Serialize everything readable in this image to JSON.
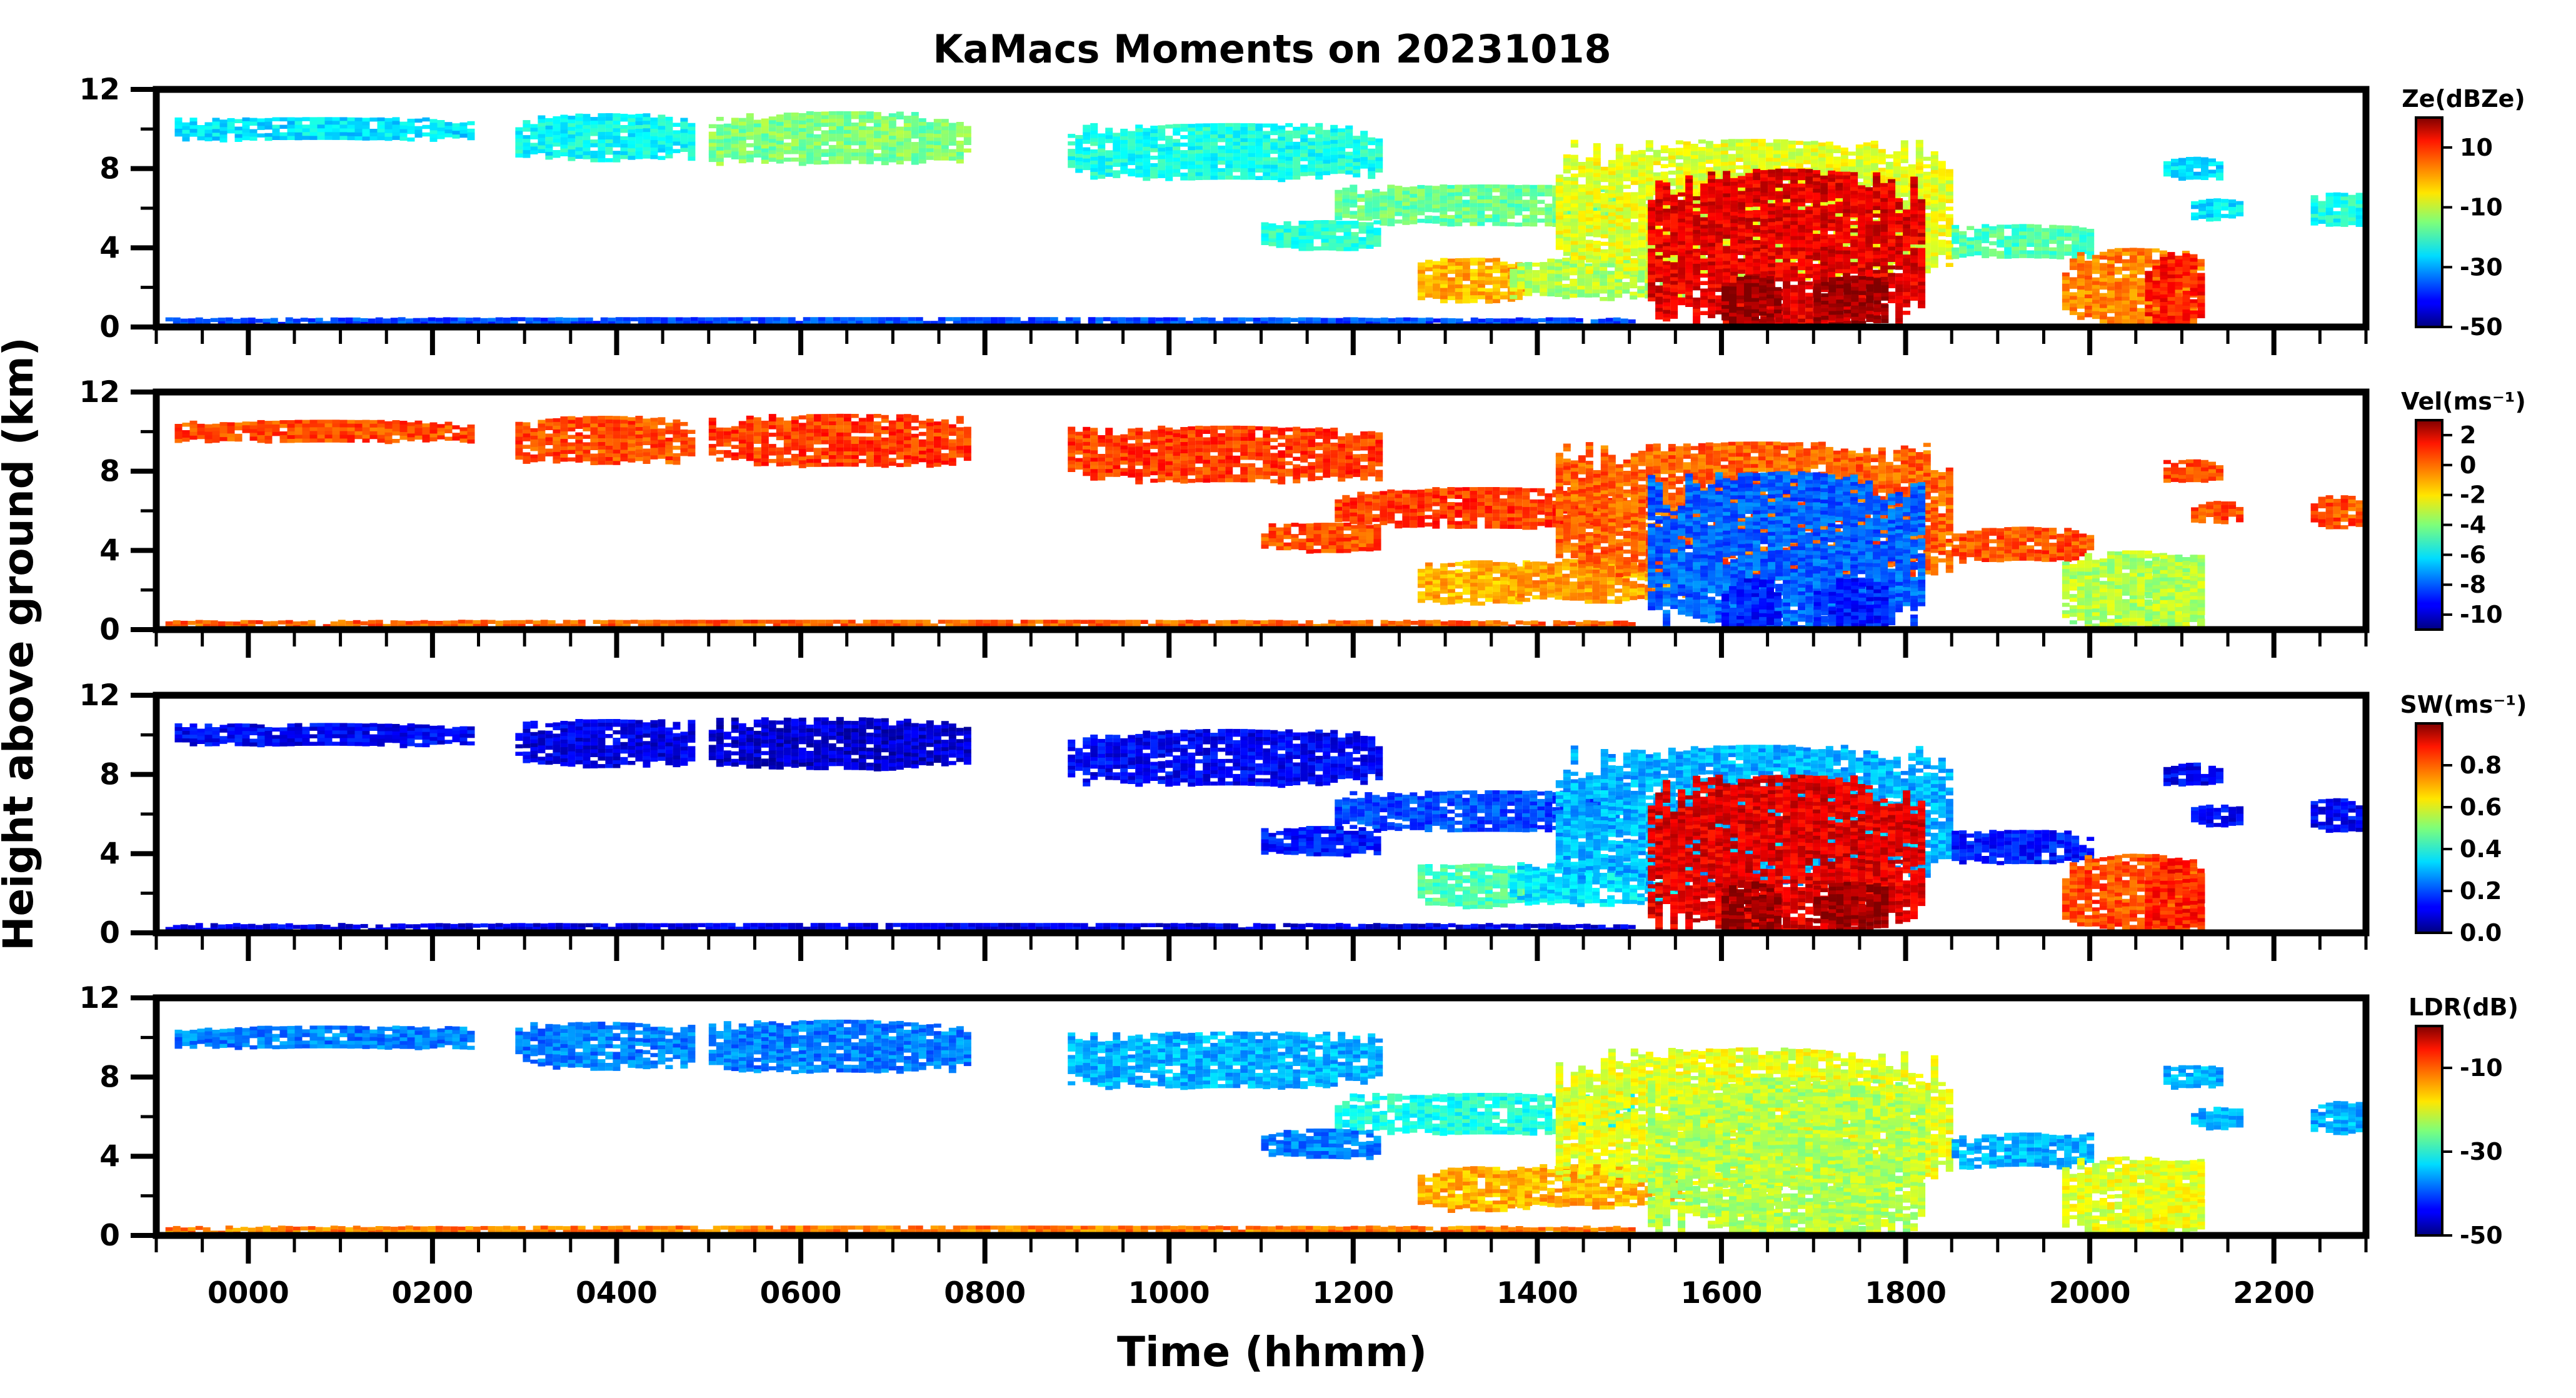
{
  "chart_data": {
    "type": "heatmap",
    "title": "KaMacs Moments on 20231018",
    "xlabel": "Time (hhmm)",
    "ylabel": "Height above ground (km)",
    "xlim": [
      -100,
      2300
    ],
    "x_tick_labels": [
      "0000",
      "0200",
      "0400",
      "0600",
      "0800",
      "1000",
      "1200",
      "1400",
      "1600",
      "1800",
      "2000",
      "2200"
    ],
    "x_tick_values": [
      0,
      200,
      400,
      600,
      800,
      1000,
      1200,
      1400,
      1600,
      1800,
      2000,
      2200
    ],
    "ylim": [
      0,
      12
    ],
    "y_tick_labels": [
      "0",
      "4",
      "8",
      "12"
    ],
    "y_tick_values": [
      0,
      4,
      8,
      12
    ],
    "panels": [
      {
        "name": "Ze",
        "colorbar_label": "Ze(dBZe)",
        "colormap": "jet",
        "clim": [
          -50,
          20
        ],
        "colorbar_ticks": [
          -50,
          -30,
          -10,
          10
        ],
        "colorbar_tick_labels": [
          "-50",
          "-30",
          "-10",
          "10"
        ]
      },
      {
        "name": "Vel",
        "colorbar_label": "Vel(ms⁻¹)",
        "colormap": "jet",
        "clim": [
          -11,
          3
        ],
        "colorbar_ticks": [
          -10,
          -8,
          -6,
          -4,
          -2,
          0,
          2
        ],
        "colorbar_tick_labels": [
          "-10",
          "-8",
          "-6",
          "-4",
          "-2",
          "0",
          "2"
        ]
      },
      {
        "name": "SW",
        "colorbar_label": "SW(ms⁻¹)",
        "colormap": "jet",
        "clim": [
          0,
          1.0
        ],
        "colorbar_ticks": [
          0.0,
          0.2,
          0.4,
          0.6,
          0.8
        ],
        "colorbar_tick_labels": [
          "0.0",
          "0.2",
          "0.4",
          "0.6",
          "0.8"
        ]
      },
      {
        "name": "LDR",
        "colorbar_label": "LDR(dB)",
        "colormap": "jet",
        "clim": [
          -50,
          0
        ],
        "colorbar_ticks": [
          -50,
          -30,
          -10
        ],
        "colorbar_tick_labels": [
          "-50",
          "-30",
          "-10"
        ]
      }
    ],
    "cloud_features": [
      {
        "t0": -80,
        "t1": 240,
        "h0": 9.5,
        "h1": 10.6,
        "v": [
          0.35,
          0.8,
          0.12,
          0.25
        ]
      },
      {
        "t0": 290,
        "t1": 480,
        "h0": 8.5,
        "h1": 10.8,
        "v": [
          0.38,
          0.8,
          0.1,
          0.25
        ]
      },
      {
        "t0": 500,
        "t1": 780,
        "h0": 8.3,
        "h1": 10.9,
        "v": [
          0.5,
          0.82,
          0.08,
          0.25
        ]
      },
      {
        "t0": 890,
        "t1": 1230,
        "h0": 7.5,
        "h1": 10.3,
        "v": [
          0.4,
          0.82,
          0.12,
          0.3
        ]
      },
      {
        "t0": 1180,
        "t1": 1500,
        "h0": 5.2,
        "h1": 7.2,
        "v": [
          0.48,
          0.82,
          0.2,
          0.4
        ]
      },
      {
        "t0": 1100,
        "t1": 1230,
        "h0": 4.0,
        "h1": 5.4,
        "v": [
          0.42,
          0.8,
          0.15,
          0.25
        ]
      },
      {
        "t0": 1270,
        "t1": 1390,
        "h0": 1.3,
        "h1": 3.5,
        "v": [
          0.7,
          0.7,
          0.45,
          0.7
        ]
      },
      {
        "t0": 1370,
        "t1": 1560,
        "h0": 1.5,
        "h1": 3.6,
        "v": [
          0.55,
          0.72,
          0.35,
          0.7
        ]
      },
      {
        "t0": 1420,
        "t1": 1850,
        "h0": 2.5,
        "h1": 9.5,
        "v": [
          0.6,
          0.78,
          0.3,
          0.6
        ]
      },
      {
        "t0": 1520,
        "t1": 1820,
        "h0": 0.1,
        "h1": 8.0,
        "v": [
          0.9,
          0.22,
          0.9,
          0.55
        ]
      },
      {
        "t0": 1600,
        "t1": 1660,
        "h0": 0.1,
        "h1": 2.6,
        "v": [
          0.98,
          0.15,
          0.98,
          0.55
        ]
      },
      {
        "t0": 1700,
        "t1": 1780,
        "h0": 0.1,
        "h1": 2.6,
        "v": [
          0.98,
          0.15,
          0.98,
          0.55
        ]
      },
      {
        "t0": 1850,
        "t1": 2000,
        "h0": 3.5,
        "h1": 5.2,
        "v": [
          0.45,
          0.8,
          0.15,
          0.3
        ]
      },
      {
        "t0": 1970,
        "t1": 2120,
        "h0": 0.1,
        "h1": 4.0,
        "v": [
          0.75,
          0.55,
          0.8,
          0.6
        ]
      },
      {
        "t0": 2060,
        "t1": 2120,
        "h0": 0.1,
        "h1": 3.8,
        "v": [
          0.85,
          0.55,
          0.85,
          0.6
        ]
      },
      {
        "t0": 2080,
        "t1": 2140,
        "h0": 7.5,
        "h1": 8.6,
        "v": [
          0.35,
          0.8,
          0.12,
          0.3
        ]
      },
      {
        "t0": 2110,
        "t1": 2160,
        "h0": 5.5,
        "h1": 6.5,
        "v": [
          0.35,
          0.8,
          0.12,
          0.3
        ]
      },
      {
        "t0": 2240,
        "t1": 2295,
        "h0": 5.2,
        "h1": 6.8,
        "v": [
          0.4,
          0.8,
          0.12,
          0.3
        ]
      },
      {
        "t0": -90,
        "t1": 1500,
        "h0": 0.1,
        "h1": 0.5,
        "v": [
          0.2,
          0.78,
          0.1,
          0.75
        ]
      }
    ]
  }
}
